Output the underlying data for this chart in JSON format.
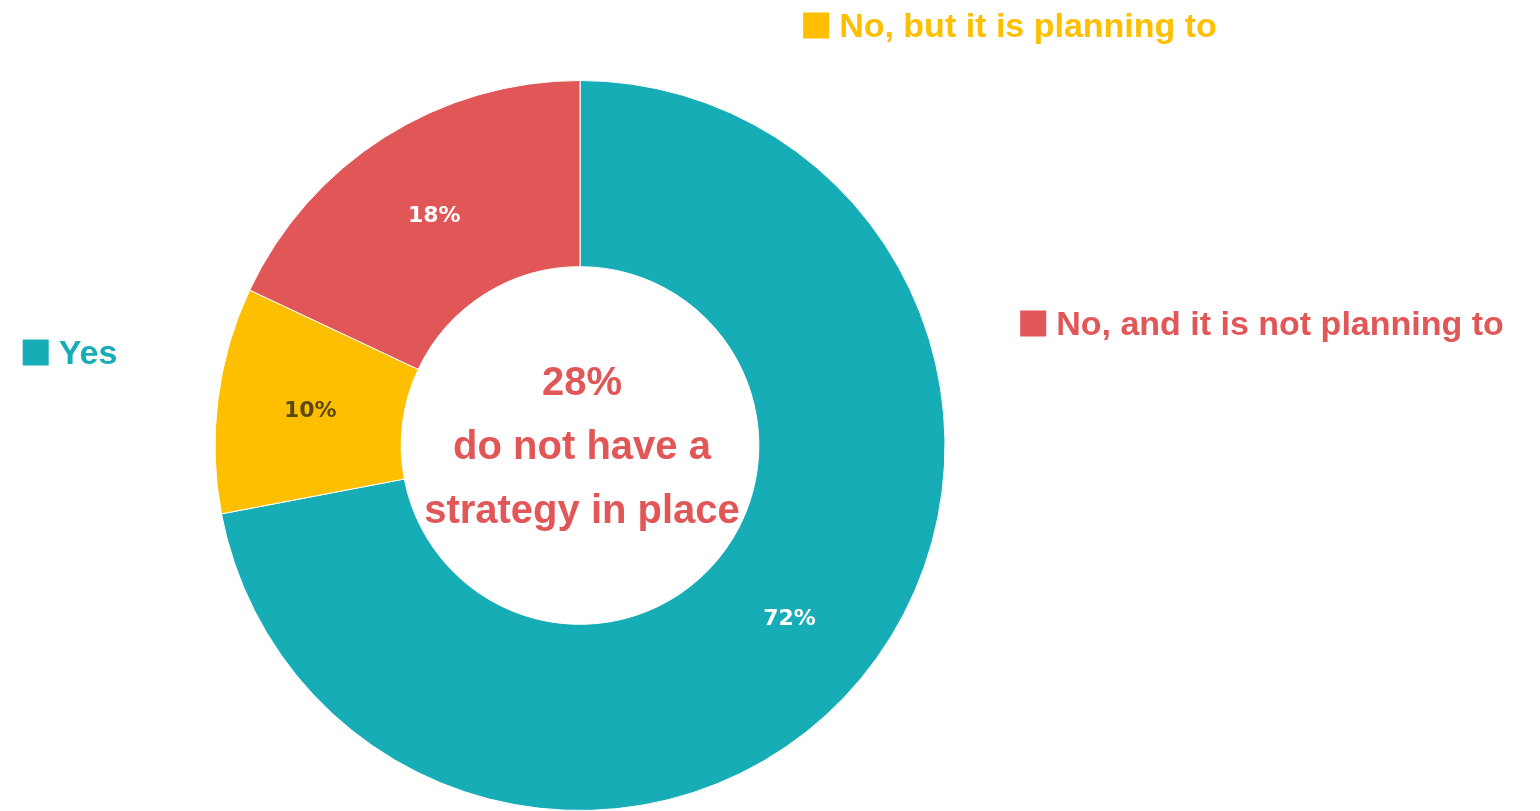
{
  "chart_data": {
    "type": "donut",
    "categories": [
      "Yes",
      "No, but it is planning to",
      "No, and it is not planning to"
    ],
    "values": [
      72,
      10,
      18
    ],
    "colors": [
      "#17adb7",
      "#fdbf00",
      "#e15656"
    ],
    "legend": "top",
    "value_labels": [
      "72%",
      "10%",
      "18%"
    ],
    "annotations": [
      "28%",
      "do not have a strategy in place"
    ]
  }
}
